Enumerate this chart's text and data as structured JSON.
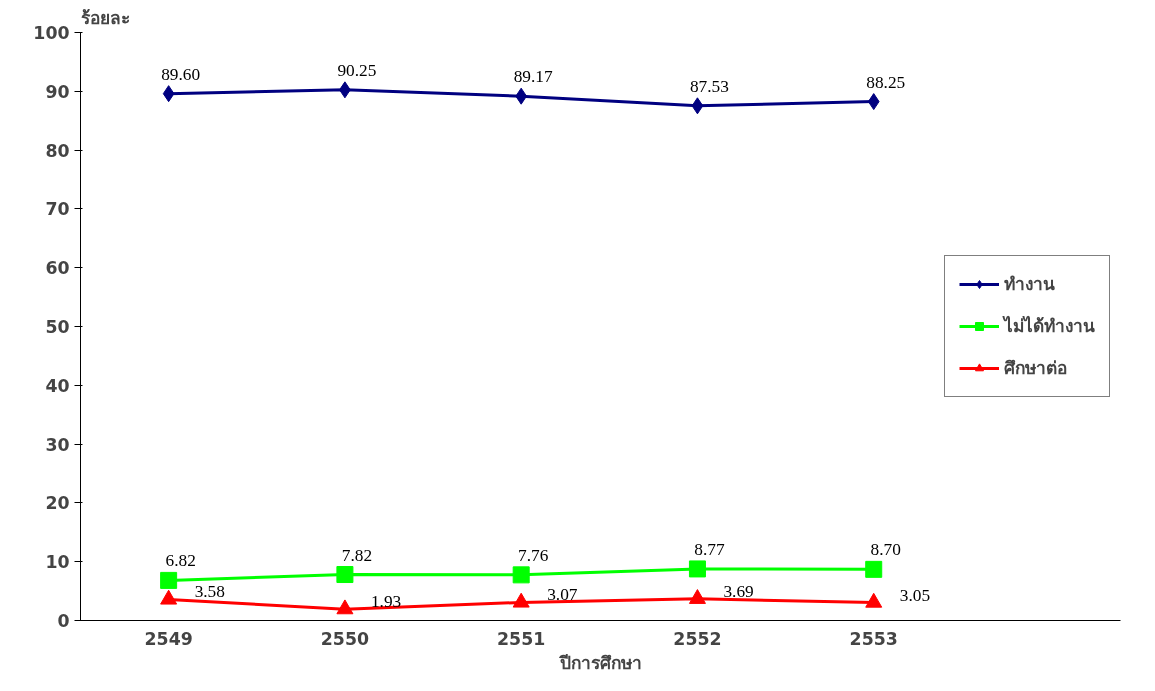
{
  "chart_data": {
    "type": "line",
    "ylabel": "ร้อยละ",
    "xlabel": "ปีการศึกษา",
    "categories": [
      "2549",
      "2550",
      "2551",
      "2552",
      "2553"
    ],
    "ylim": [
      0,
      100
    ],
    "yticks": [
      0,
      10,
      20,
      30,
      40,
      50,
      60,
      70,
      80,
      90,
      100
    ],
    "grid": false,
    "legend": "right",
    "line_style": "solid",
    "series": [
      {
        "name": "ทำงาน",
        "color": "#000080",
        "marker": "diamond",
        "values": [
          89.6,
          90.25,
          89.17,
          87.53,
          88.25
        ],
        "value_labels": [
          "89.60",
          "90.25",
          "89.17",
          "87.53",
          "88.25"
        ]
      },
      {
        "name": "ไม่ได้ทำงาน",
        "color": "#00ff00",
        "marker": "square",
        "values": [
          6.82,
          7.82,
          7.76,
          8.77,
          8.7
        ],
        "value_labels": [
          "6.82",
          "7.82",
          "7.76",
          "8.77",
          "8.70"
        ]
      },
      {
        "name": "ศึกษาต่อ",
        "color": "#ff0000",
        "marker": "triangle",
        "values": [
          3.58,
          1.93,
          3.07,
          3.69,
          3.05
        ],
        "value_labels": [
          "3.58",
          "1.93",
          "3.07",
          "3.69",
          "3.05"
        ]
      }
    ]
  }
}
